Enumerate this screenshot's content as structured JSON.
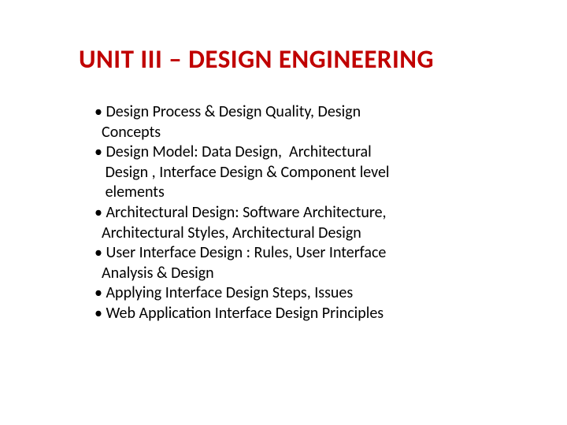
{
  "title_color": "#c00000",
  "body_color": "#000000",
  "background_color": "#ffffff",
  "title_fontsize": 33,
  "body_fontsize": 20,
  "title": "UNIT III – DESIGN ENGINEERING",
  "lines": [
    "• Design Process & Design Quality, Design",
    "  Concepts",
    "• Design Model: Data Design,  Architectural",
    "   Design , Interface Design & Component level",
    "   elements",
    "• Architectural Design: Software Architecture,",
    "  Architectural Styles, Architectural Design",
    "• User Interface Design : Rules, User Interface",
    "  Analysis & Design",
    "• Applying Interface Design Steps, Issues",
    "• Web Application Interface Design Principles"
  ]
}
